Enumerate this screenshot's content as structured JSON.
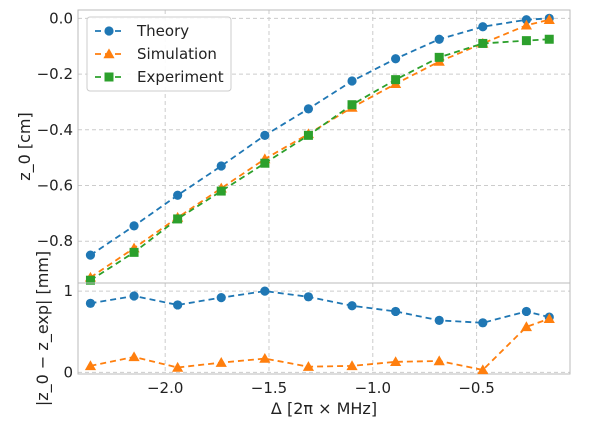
{
  "chart_data": [
    {
      "type": "line",
      "panel": "top",
      "ylabel": "z_0 [cm]",
      "xlim": [
        -2.42,
        -0.05
      ],
      "ylim": [
        -0.95,
        0.03
      ],
      "yticks": [
        0.0,
        -0.2,
        -0.4,
        -0.6,
        -0.8
      ],
      "ytick_labels": [
        "0.0",
        "−0.2",
        "−0.4",
        "−0.6",
        "−0.8"
      ],
      "grid": true,
      "legend": "top-left",
      "series": [
        {
          "name": "Theory",
          "marker": "circle",
          "color": "#1f77b4",
          "x": [
            -2.36,
            -2.15,
            -1.94,
            -1.73,
            -1.52,
            -1.31,
            -1.1,
            -0.89,
            -0.68,
            -0.47,
            -0.26,
            -0.15
          ],
          "y": [
            -0.85,
            -0.745,
            -0.635,
            -0.53,
            -0.42,
            -0.325,
            -0.225,
            -0.145,
            -0.075,
            -0.03,
            -0.005,
            0.0
          ]
        },
        {
          "name": "Simulation",
          "marker": "triangle",
          "color": "#ff7f0e",
          "x": [
            -2.36,
            -2.15,
            -1.94,
            -1.73,
            -1.52,
            -1.31,
            -1.1,
            -0.89,
            -0.68,
            -0.47,
            -0.26,
            -0.15
          ],
          "y": [
            -0.93,
            -0.825,
            -0.715,
            -0.61,
            -0.505,
            -0.415,
            -0.32,
            -0.235,
            -0.155,
            -0.09,
            -0.025,
            -0.005
          ]
        },
        {
          "name": "Experiment",
          "marker": "square",
          "color": "#2ca02c",
          "x": [
            -2.36,
            -2.15,
            -1.94,
            -1.73,
            -1.52,
            -1.31,
            -1.1,
            -0.89,
            -0.68,
            -0.47,
            -0.26,
            -0.15
          ],
          "y": [
            -0.94,
            -0.84,
            -0.72,
            -0.62,
            -0.52,
            -0.42,
            -0.31,
            -0.22,
            -0.14,
            -0.09,
            -0.08,
            -0.075
          ]
        }
      ]
    },
    {
      "type": "line",
      "panel": "bottom",
      "ylabel": "|z_0 − z_exp| [mm]",
      "xlabel": "Δ [2π × MHz]",
      "xlim": [
        -2.42,
        -0.05
      ],
      "ylim": [
        -0.02,
        1.1
      ],
      "yticks": [
        0,
        1
      ],
      "ytick_labels": [
        "0",
        "1"
      ],
      "xticks": [
        -2.0,
        -1.5,
        -1.0,
        -0.5
      ],
      "xtick_labels": [
        "−2.0",
        "−1.5",
        "−1.0",
        "−0.5"
      ],
      "grid": true,
      "series": [
        {
          "name": "Theory",
          "marker": "circle",
          "color": "#1f77b4",
          "x": [
            -2.36,
            -2.15,
            -1.94,
            -1.73,
            -1.52,
            -1.31,
            -1.1,
            -0.89,
            -0.68,
            -0.47,
            -0.26,
            -0.15
          ],
          "y": [
            0.85,
            0.94,
            0.83,
            0.92,
            1.0,
            0.93,
            0.82,
            0.75,
            0.64,
            0.61,
            0.75,
            0.68
          ]
        },
        {
          "name": "Simulation",
          "marker": "triangle",
          "color": "#ff7f0e",
          "x": [
            -2.36,
            -2.15,
            -1.94,
            -1.73,
            -1.52,
            -1.31,
            -1.1,
            -0.89,
            -0.68,
            -0.47,
            -0.26,
            -0.15
          ],
          "y": [
            0.08,
            0.19,
            0.06,
            0.12,
            0.17,
            0.07,
            0.08,
            0.13,
            0.14,
            0.03,
            0.56,
            0.66
          ]
        }
      ]
    }
  ],
  "legend": {
    "entries": [
      "Theory",
      "Simulation",
      "Experiment"
    ]
  }
}
